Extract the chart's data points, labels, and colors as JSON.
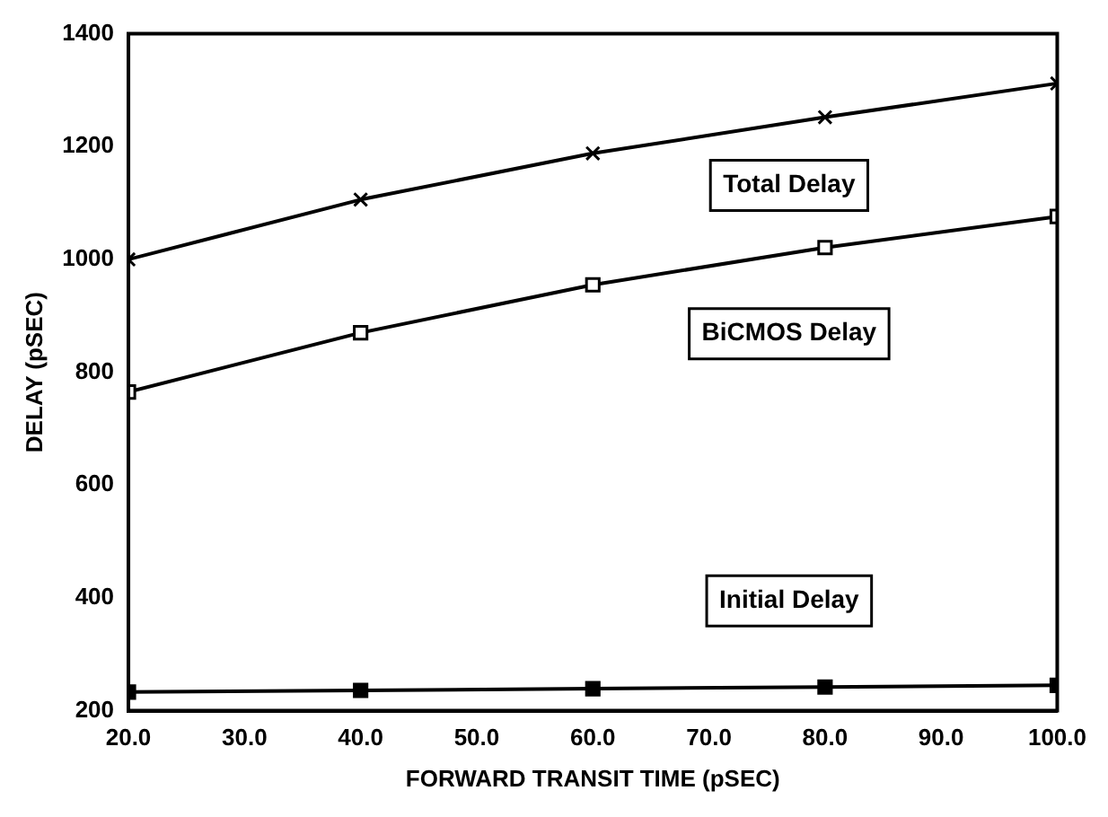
{
  "chart_data": {
    "type": "line",
    "xlabel": "FORWARD TRANSIT TIME (pSEC)",
    "ylabel": "DELAY (pSEC)",
    "x": [
      20,
      40,
      60,
      80,
      100
    ],
    "series": [
      {
        "name": "Total Delay",
        "color": "#000000",
        "marker": "cross",
        "values": [
          1000,
          1106,
          1188,
          1252,
          1312
        ]
      },
      {
        "name": "BiCMOS Delay",
        "color": "#000000",
        "marker": "square",
        "values": [
          765,
          870,
          955,
          1021,
          1076
        ]
      },
      {
        "name": "Initial Delay",
        "color": "#000000",
        "marker": "square",
        "values": [
          233,
          236,
          239,
          242,
          245
        ]
      }
    ],
    "xlim": [
      20,
      100
    ],
    "xticks": [
      {
        "value": 20,
        "label": "20.0"
      },
      {
        "value": 30,
        "label": "30.0"
      },
      {
        "value": 40,
        "label": "40.0"
      },
      {
        "value": 50,
        "label": "50.0"
      },
      {
        "value": 60,
        "label": "60.0"
      },
      {
        "value": 70,
        "label": "70.0"
      },
      {
        "value": 80,
        "label": "80.0"
      },
      {
        "value": 90,
        "label": "90.0"
      },
      {
        "value": 100,
        "label": "100.0"
      }
    ],
    "ylim": [
      200,
      1400
    ],
    "yticks": [
      200,
      400,
      600,
      800,
      1000,
      1200,
      1400
    ],
    "grid": false,
    "legend": false
  }
}
